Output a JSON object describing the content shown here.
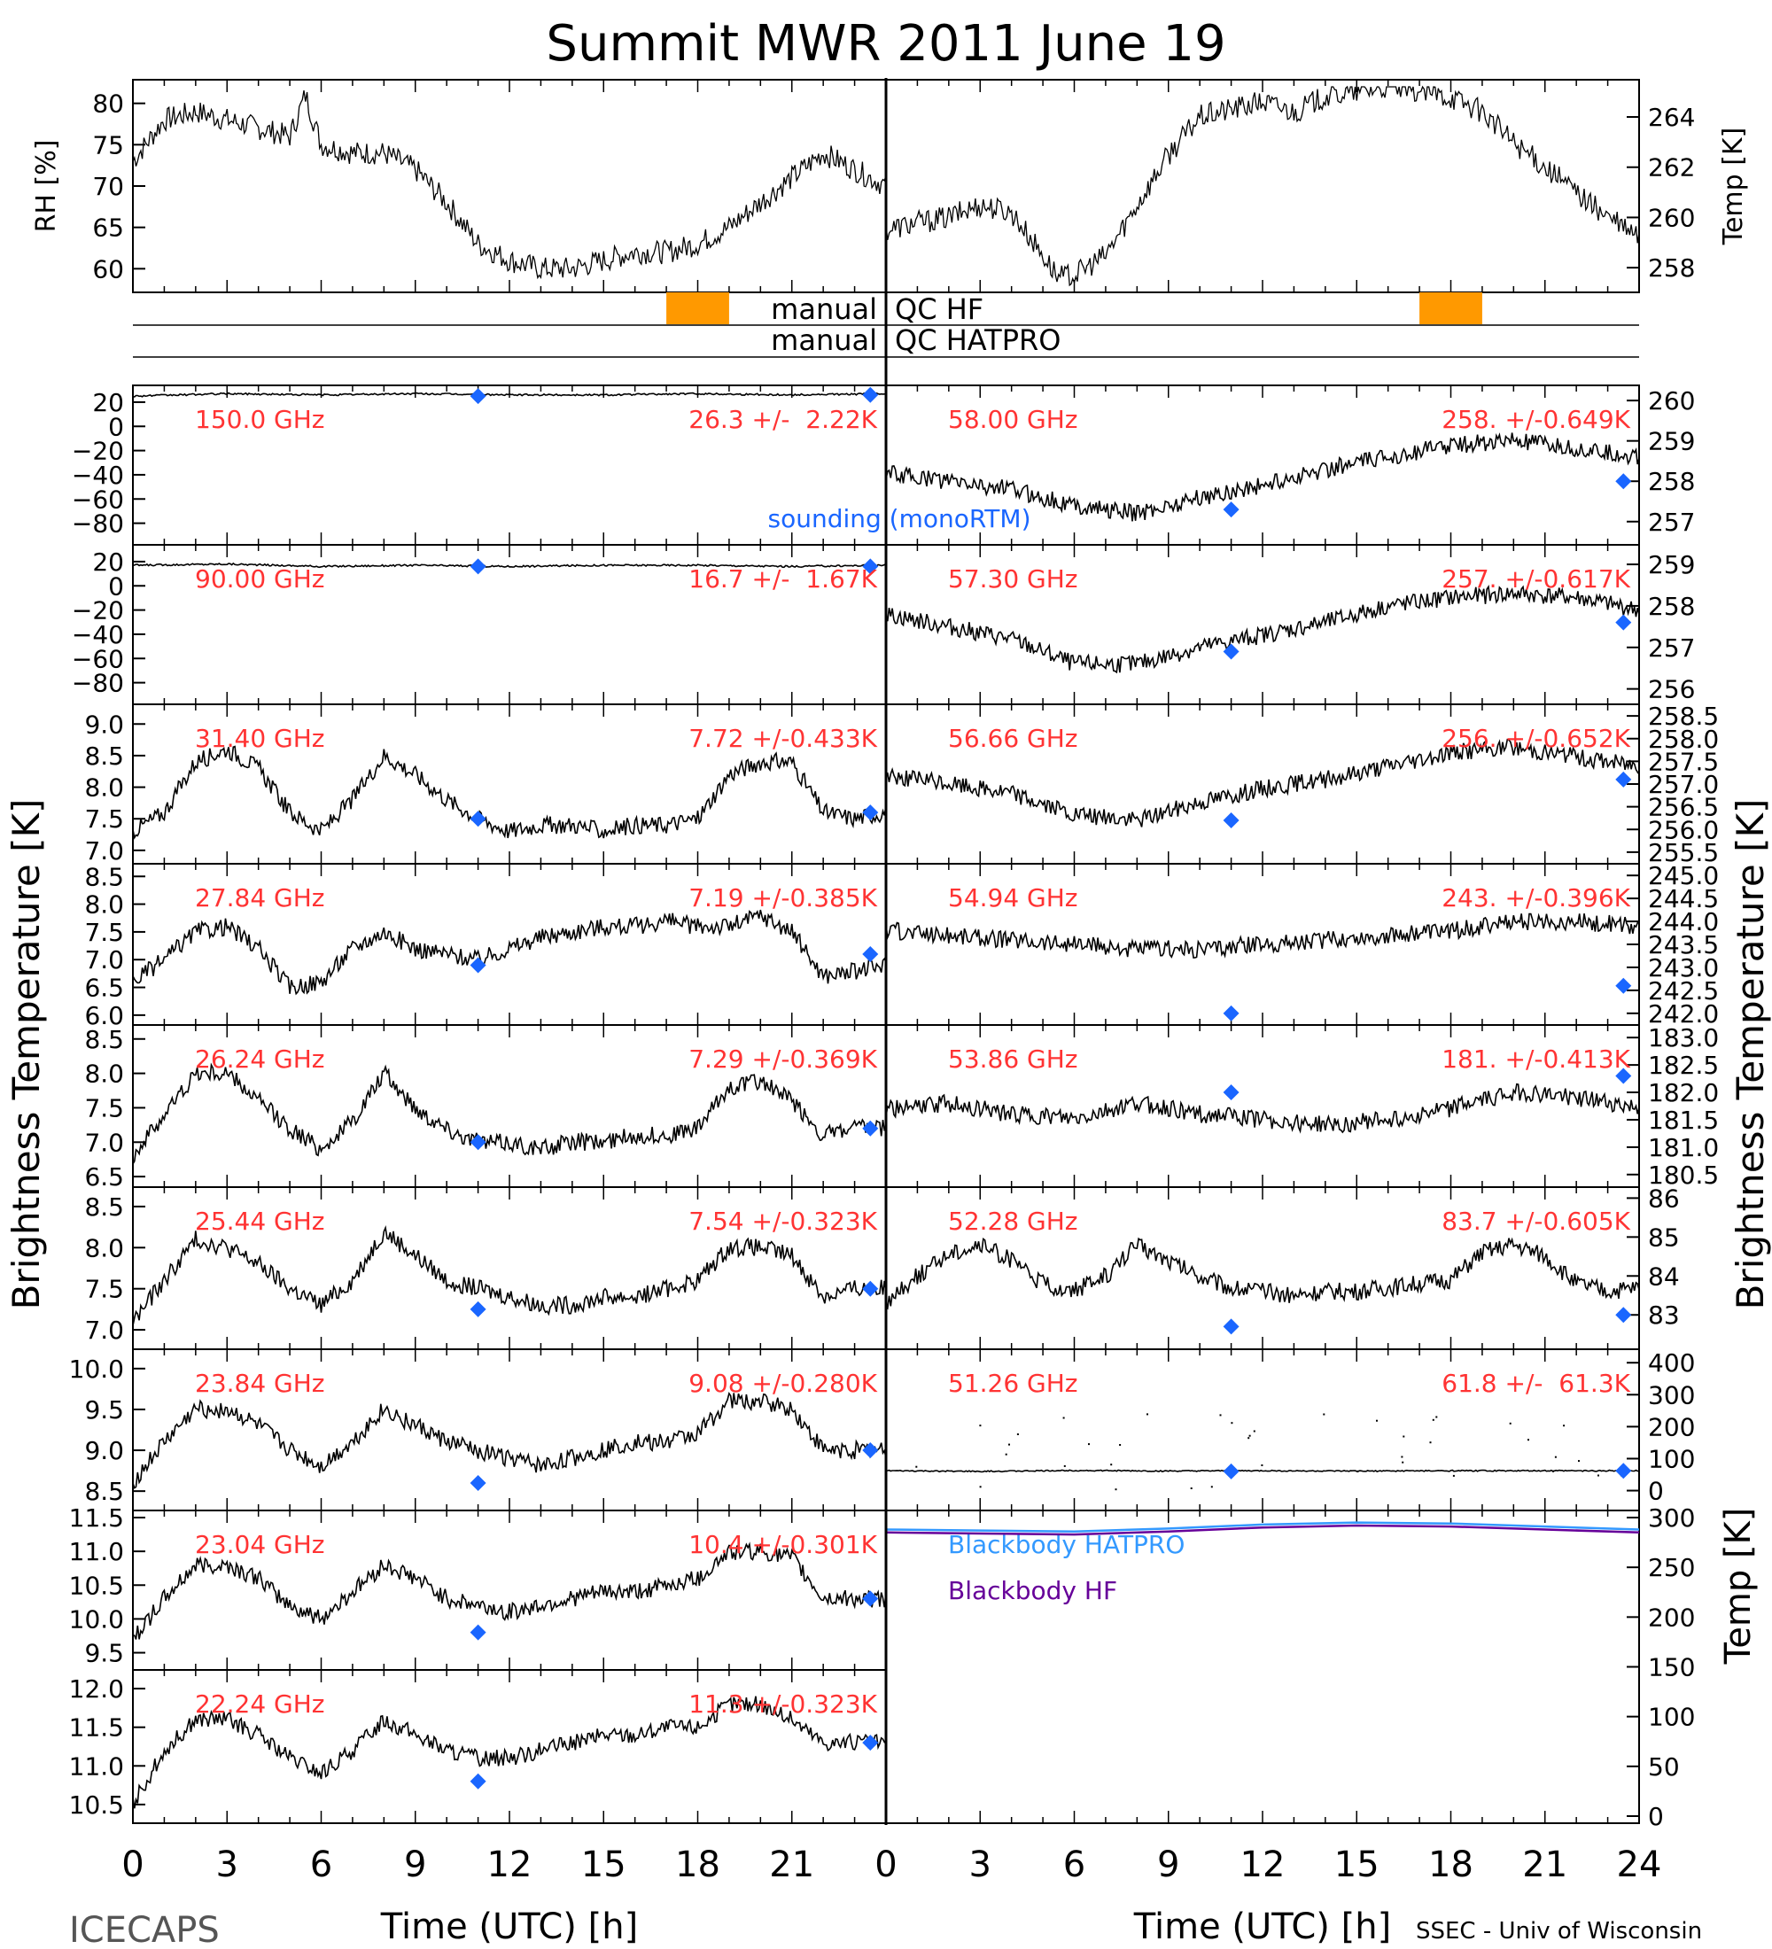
{
  "title": "Summit MWR 2011 June 19",
  "footer": {
    "left": "ICECAPS",
    "right": "SSEC - Univ of Wisconsin",
    "xlabel": "Time (UTC) [h]"
  },
  "left_ylabel": "Brightness Temperature [K]",
  "right_ylabel": "Brightness Temperature [K]",
  "x_ticks": [
    "0",
    "3",
    "6",
    "9",
    "12",
    "15",
    "18",
    "21",
    "24"
  ],
  "left_x_ticks": [
    "0",
    "3",
    "6",
    "9",
    "12",
    "15",
    "18",
    "21"
  ],
  "qc": {
    "row1_left": "manual",
    "row1_right": "QC HF",
    "row2_left": "manual",
    "row2_right": "QC HATPRO",
    "color": "#ff9900"
  },
  "colors": {
    "trace": "#000000",
    "sounding": "#1a66ff",
    "label": "#ff3333",
    "bb_hatpro": "#3399ff",
    "bb_hf": "#660099"
  },
  "chart_data": [
    {
      "id": "rh",
      "type": "line",
      "ylabel": "RH [%]",
      "ticks": [
        "80",
        "75",
        "70",
        "65",
        "60"
      ],
      "ylim": [
        58,
        82
      ],
      "x": [
        0,
        1,
        2,
        3,
        4,
        5,
        5.5,
        6,
        7,
        8,
        9,
        10,
        11,
        12,
        13,
        14,
        15,
        16,
        17,
        18,
        19,
        20,
        21,
        22,
        23,
        24
      ],
      "values": [
        73,
        78,
        79,
        78,
        77,
        76,
        81,
        75,
        74,
        74,
        72,
        68,
        63,
        61,
        60,
        60,
        61,
        62,
        62,
        63,
        65,
        68,
        71,
        74,
        72,
        70
      ]
    },
    {
      "id": "temp",
      "type": "line",
      "ylabel": "Temp [K]",
      "ticks": [
        "264",
        "262",
        "260",
        "258"
      ],
      "ylim": [
        257.3,
        265.2
      ],
      "x": [
        0,
        1,
        2,
        3,
        4,
        5,
        5.5,
        6,
        7,
        8,
        9,
        10,
        11,
        12,
        13,
        14,
        15,
        16,
        17,
        18,
        19,
        20,
        21,
        22,
        23,
        24
      ],
      "values": [
        259.5,
        259.8,
        260,
        260.5,
        260.2,
        258.5,
        257.6,
        257.7,
        258.5,
        260.5,
        262.5,
        264,
        264.3,
        264.6,
        264.2,
        264.8,
        265,
        265.2,
        265,
        264.8,
        264.2,
        263,
        262,
        261,
        260,
        259.2
      ]
    },
    {
      "id": "qc",
      "type": "bar",
      "series": [
        {
          "name": "QC HF",
          "values": [
            17,
            19
          ]
        },
        {
          "name": "QC HATPRO",
          "values": []
        }
      ]
    },
    {
      "id": "150",
      "type": "line",
      "label": "150.0 GHz",
      "stat": "26.3 +/-  2.22K",
      "ticks": [
        "20",
        "0",
        "−20",
        "−40",
        "−60",
        "−80"
      ],
      "ylim": [
        -92,
        28
      ],
      "x": [
        0,
        3,
        6,
        9,
        12,
        15,
        18,
        21,
        24
      ],
      "values": [
        25,
        27,
        26,
        27,
        26,
        26,
        27,
        26,
        27
      ],
      "sounding": [
        [
          11,
          25
        ],
        [
          23.5,
          26
        ]
      ],
      "sounding_label": "sounding (monoRTM)"
    },
    {
      "id": "90",
      "type": "line",
      "label": "90.00 GHz",
      "stat": "16.7 +/-  1.67K",
      "ticks": [
        "20",
        "0",
        "−20",
        "−40",
        "−60",
        "−80"
      ],
      "ylim": [
        -92,
        28
      ],
      "x": [
        0,
        3,
        6,
        9,
        12,
        15,
        18,
        21,
        24
      ],
      "values": [
        17,
        18,
        16,
        17,
        16,
        17,
        17,
        16,
        17
      ],
      "sounding": [
        [
          11,
          16
        ],
        [
          23.5,
          16
        ]
      ]
    },
    {
      "id": "3140",
      "type": "line",
      "label": "31.40 GHz",
      "stat": "7.72 +/-0.433K",
      "ticks": [
        "9.0",
        "8.5",
        "8.0",
        "7.5",
        "7.0"
      ],
      "ylim": [
        6.9,
        9.2
      ],
      "x": [
        0,
        1,
        2,
        3,
        4,
        5,
        6,
        7,
        8,
        9,
        10,
        11,
        12,
        13,
        14,
        15,
        16,
        17,
        18,
        19,
        20,
        21,
        22,
        23,
        24
      ],
      "values": [
        7.3,
        7.6,
        8.4,
        8.6,
        8.3,
        7.6,
        7.3,
        7.8,
        8.5,
        8.2,
        7.8,
        7.5,
        7.3,
        7.4,
        7.4,
        7.3,
        7.4,
        7.4,
        7.5,
        8.2,
        8.4,
        8.4,
        7.6,
        7.5,
        7.6
      ],
      "sounding": [
        [
          11,
          7.5
        ],
        [
          23.5,
          7.6
        ]
      ]
    },
    {
      "id": "2784",
      "type": "line",
      "label": "27.84 GHz",
      "stat": "7.19 +/-0.385K",
      "ticks": [
        "8.5",
        "8.0",
        "7.5",
        "7.0",
        "6.5",
        "6.0"
      ],
      "ylim": [
        5.95,
        8.6
      ],
      "x": [
        0,
        1,
        2,
        3,
        4,
        5,
        6,
        7,
        8,
        9,
        10,
        11,
        12,
        13,
        14,
        15,
        16,
        17,
        18,
        19,
        20,
        21,
        22,
        23,
        24
      ],
      "values": [
        6.6,
        7.0,
        7.5,
        7.6,
        7.2,
        6.5,
        6.6,
        7.2,
        7.5,
        7.2,
        7.1,
        7.0,
        7.2,
        7.4,
        7.5,
        7.6,
        7.6,
        7.7,
        7.6,
        7.6,
        7.8,
        7.5,
        6.7,
        6.8,
        6.9
      ],
      "sounding": [
        [
          11,
          6.9
        ],
        [
          23.5,
          7.1
        ]
      ]
    },
    {
      "id": "2624",
      "type": "line",
      "label": "26.24 GHz",
      "stat": "7.29 +/-0.369K",
      "ticks": [
        "8.5",
        "8.0",
        "7.5",
        "7.0",
        "6.5"
      ],
      "ylim": [
        6.45,
        8.6
      ],
      "x": [
        0,
        1,
        2,
        3,
        4,
        5,
        6,
        7,
        8,
        9,
        10,
        11,
        12,
        13,
        14,
        15,
        16,
        17,
        18,
        19,
        20,
        21,
        22,
        23,
        24
      ],
      "values": [
        6.8,
        7.4,
        8.0,
        8.0,
        7.6,
        7.2,
        6.9,
        7.3,
        8.0,
        7.5,
        7.2,
        7.0,
        7.0,
        6.9,
        7.0,
        7.0,
        7.1,
        7.1,
        7.2,
        7.8,
        7.9,
        7.6,
        7.1,
        7.2,
        7.2
      ],
      "sounding": [
        [
          11,
          7.0
        ],
        [
          23.5,
          7.2
        ]
      ]
    },
    {
      "id": "2544",
      "type": "line",
      "label": "25.44 GHz",
      "stat": "7.54 +/-0.323K",
      "ticks": [
        "8.5",
        "8.0",
        "7.5",
        "7.0"
      ],
      "ylim": [
        6.85,
        8.65
      ],
      "x": [
        0,
        1,
        2,
        3,
        4,
        5,
        6,
        7,
        8,
        9,
        10,
        11,
        12,
        13,
        14,
        15,
        16,
        17,
        18,
        19,
        20,
        21,
        22,
        23,
        24
      ],
      "values": [
        7.1,
        7.6,
        8.1,
        8.0,
        7.8,
        7.5,
        7.3,
        7.6,
        8.2,
        7.9,
        7.6,
        7.5,
        7.4,
        7.3,
        7.3,
        7.4,
        7.4,
        7.5,
        7.6,
        8.0,
        8.0,
        7.9,
        7.4,
        7.5,
        7.5
      ],
      "sounding": [
        [
          11,
          7.25
        ],
        [
          23.5,
          7.5
        ]
      ]
    },
    {
      "id": "2384",
      "type": "line",
      "label": "23.84 GHz",
      "stat": "9.08 +/-0.280K",
      "ticks": [
        "10.0",
        "9.5",
        "9.0",
        "8.5"
      ],
      "ylim": [
        8.35,
        10.15
      ],
      "x": [
        0,
        1,
        2,
        3,
        4,
        5,
        6,
        7,
        8,
        9,
        10,
        11,
        12,
        13,
        14,
        15,
        16,
        17,
        18,
        19,
        20,
        21,
        22,
        23,
        24
      ],
      "values": [
        8.6,
        9.1,
        9.5,
        9.5,
        9.3,
        9.0,
        8.8,
        9.1,
        9.5,
        9.3,
        9.1,
        9.0,
        8.9,
        8.8,
        8.9,
        9.0,
        9.1,
        9.1,
        9.2,
        9.6,
        9.6,
        9.5,
        9.0,
        9.0,
        9.0
      ],
      "sounding": [
        [
          11,
          8.6
        ],
        [
          23.5,
          9.0
        ]
      ]
    },
    {
      "id": "2304",
      "type": "line",
      "label": "23.04 GHz",
      "stat": "10.4 +/-0.301K",
      "ticks": [
        "11.5",
        "11.0",
        "10.5",
        "10.0",
        "9.5"
      ],
      "ylim": [
        9.35,
        11.5
      ],
      "x": [
        0,
        1,
        2,
        3,
        4,
        5,
        6,
        7,
        8,
        9,
        10,
        11,
        12,
        13,
        14,
        15,
        16,
        17,
        18,
        19,
        20,
        21,
        22,
        23,
        24
      ],
      "values": [
        9.7,
        10.3,
        10.8,
        10.8,
        10.6,
        10.2,
        10.0,
        10.4,
        10.8,
        10.6,
        10.3,
        10.2,
        10.1,
        10.2,
        10.3,
        10.4,
        10.4,
        10.5,
        10.6,
        11.0,
        11.0,
        10.9,
        10.3,
        10.3,
        10.3
      ],
      "sounding": [
        [
          11,
          9.8
        ],
        [
          23.5,
          10.3
        ]
      ]
    },
    {
      "id": "2224",
      "type": "line",
      "label": "22.24 GHz",
      "stat": "11.3 +/-0.323K",
      "ticks": [
        "12.0",
        "11.5",
        "11.0",
        "10.5"
      ],
      "ylim": [
        10.35,
        12.15
      ],
      "x": [
        0,
        1,
        2,
        3,
        4,
        5,
        6,
        7,
        8,
        9,
        10,
        11,
        12,
        13,
        14,
        15,
        16,
        17,
        18,
        19,
        20,
        21,
        22,
        23,
        24
      ],
      "values": [
        10.5,
        11.2,
        11.6,
        11.6,
        11.4,
        11.1,
        10.9,
        11.2,
        11.6,
        11.4,
        11.2,
        11.1,
        11.1,
        11.2,
        11.3,
        11.4,
        11.4,
        11.5,
        11.5,
        11.8,
        11.8,
        11.6,
        11.3,
        11.3,
        11.3
      ],
      "sounding": [
        [
          11,
          10.8
        ],
        [
          23.5,
          11.3
        ]
      ]
    },
    {
      "id": "5800",
      "type": "line",
      "label": "58.00 GHz",
      "stat": "258. +/-0.649K",
      "ticks": [
        "260",
        "259",
        "258",
        "257"
      ],
      "ylim": [
        256.6,
        260.2
      ],
      "x": [
        0,
        2,
        4,
        6,
        8,
        10,
        12,
        14,
        16,
        18,
        20,
        22,
        24
      ],
      "values": [
        258.2,
        258.0,
        257.8,
        257.4,
        257.2,
        257.6,
        257.9,
        258.3,
        258.6,
        258.9,
        259.0,
        258.8,
        258.6
      ],
      "sounding": [
        [
          11,
          257.3
        ],
        [
          23.5,
          258.0
        ]
      ]
    },
    {
      "id": "5730",
      "type": "line",
      "label": "57.30 GHz",
      "stat": "257. +/-0.617K",
      "ticks": [
        "259",
        "258",
        "257",
        "256"
      ],
      "ylim": [
        255.8,
        259.3
      ],
      "x": [
        0,
        2,
        4,
        6,
        8,
        10,
        12,
        14,
        16,
        18,
        20,
        22,
        24
      ],
      "values": [
        257.8,
        257.5,
        257.2,
        256.6,
        256.6,
        257.0,
        257.3,
        257.6,
        258.0,
        258.2,
        258.3,
        258.2,
        257.9
      ],
      "sounding": [
        [
          11,
          256.9
        ],
        [
          23.5,
          257.6
        ]
      ]
    },
    {
      "id": "5666",
      "type": "line",
      "label": "56.66 GHz",
      "stat": "256. +/-0.652K",
      "ticks": [
        "258.5",
        "258.0",
        "257.5",
        "257.0",
        "256.5",
        "256.0",
        "255.5"
      ],
      "ylim": [
        255.4,
        258.6
      ],
      "x": [
        0,
        2,
        4,
        6,
        8,
        10,
        12,
        14,
        16,
        18,
        20,
        22,
        24
      ],
      "values": [
        257.2,
        257.0,
        256.8,
        256.3,
        256.2,
        256.6,
        256.9,
        257.1,
        257.4,
        257.7,
        257.8,
        257.6,
        257.4
      ],
      "sounding": [
        [
          11,
          256.2
        ],
        [
          23.5,
          257.1
        ]
      ]
    },
    {
      "id": "5494",
      "type": "line",
      "label": "54.94 GHz",
      "stat": "243. +/-0.396K",
      "ticks": [
        "245.0",
        "244.5",
        "244.0",
        "243.5",
        "243.0",
        "242.5",
        "242.0"
      ],
      "ylim": [
        241.9,
        245.1
      ],
      "x": [
        0,
        2,
        4,
        6,
        8,
        10,
        12,
        14,
        16,
        18,
        20,
        22,
        24
      ],
      "values": [
        243.8,
        243.7,
        243.6,
        243.5,
        243.4,
        243.4,
        243.5,
        243.6,
        243.7,
        243.8,
        244.0,
        244.0,
        243.9
      ],
      "sounding": [
        [
          11,
          242.0
        ],
        [
          23.5,
          242.6
        ]
      ]
    },
    {
      "id": "5386",
      "type": "line",
      "label": "53.86 GHz",
      "stat": "181. +/-0.413K",
      "ticks": [
        "183.0",
        "182.5",
        "182.0",
        "181.5",
        "181.0",
        "180.5"
      ],
      "ylim": [
        180.4,
        183.1
      ],
      "x": [
        0,
        2,
        4,
        6,
        8,
        10,
        12,
        14,
        16,
        18,
        20,
        22,
        24
      ],
      "values": [
        181.7,
        181.8,
        181.6,
        181.5,
        181.8,
        181.6,
        181.5,
        181.4,
        181.5,
        181.7,
        182.0,
        181.9,
        181.7
      ],
      "sounding": [
        [
          11,
          182.0
        ],
        [
          23.5,
          182.3
        ]
      ]
    },
    {
      "id": "5228",
      "type": "line",
      "label": "52.28 GHz",
      "stat": "83.7 +/-0.605K",
      "ticks": [
        "86",
        "85",
        "84",
        "83"
      ],
      "ylim": [
        82.3,
        86.1
      ],
      "x": [
        0,
        1,
        2,
        3,
        4,
        5,
        6,
        7,
        8,
        9,
        10,
        11,
        12,
        13,
        14,
        15,
        16,
        17,
        18,
        19,
        20,
        21,
        22,
        23,
        24
      ],
      "values": [
        83.3,
        84.0,
        84.6,
        84.8,
        84.4,
        83.8,
        83.6,
        84.0,
        84.8,
        84.4,
        84.0,
        83.7,
        83.6,
        83.5,
        83.6,
        83.6,
        83.7,
        83.8,
        83.9,
        84.6,
        84.8,
        84.5,
        83.8,
        83.6,
        83.7
      ],
      "sounding": [
        [
          11,
          82.7
        ],
        [
          23.5,
          83.0
        ]
      ]
    },
    {
      "id": "5126",
      "type": "line",
      "label": "51.26 GHz",
      "stat": "61.8 +/-  61.3K",
      "ticks": [
        "400",
        "300",
        "200",
        "100",
        "0"
      ],
      "ylim": [
        -40,
        420
      ],
      "x": [
        0,
        3,
        6,
        9,
        12,
        15,
        18,
        21,
        24
      ],
      "values": [
        62,
        60,
        63,
        61,
        62,
        61,
        62,
        62,
        62
      ],
      "sounding": [
        [
          11,
          60
        ],
        [
          23.5,
          62
        ]
      ]
    },
    {
      "id": "bb",
      "type": "line",
      "ylabel": "Temp [K]",
      "ticks": [
        "300",
        "250",
        "200",
        "150",
        "100",
        "50",
        "0"
      ],
      "ylim": [
        0,
        300
      ],
      "x": [
        0,
        3,
        6,
        9,
        12,
        15,
        18,
        21,
        24
      ],
      "series": [
        {
          "name": "Blackbody HATPRO",
          "values": [
            288,
            287,
            286,
            289,
            293,
            295,
            294,
            291,
            288
          ]
        },
        {
          "name": "Blackbody HF",
          "values": [
            285,
            284,
            283,
            286,
            290,
            292,
            291,
            288,
            285
          ]
        }
      ]
    }
  ]
}
